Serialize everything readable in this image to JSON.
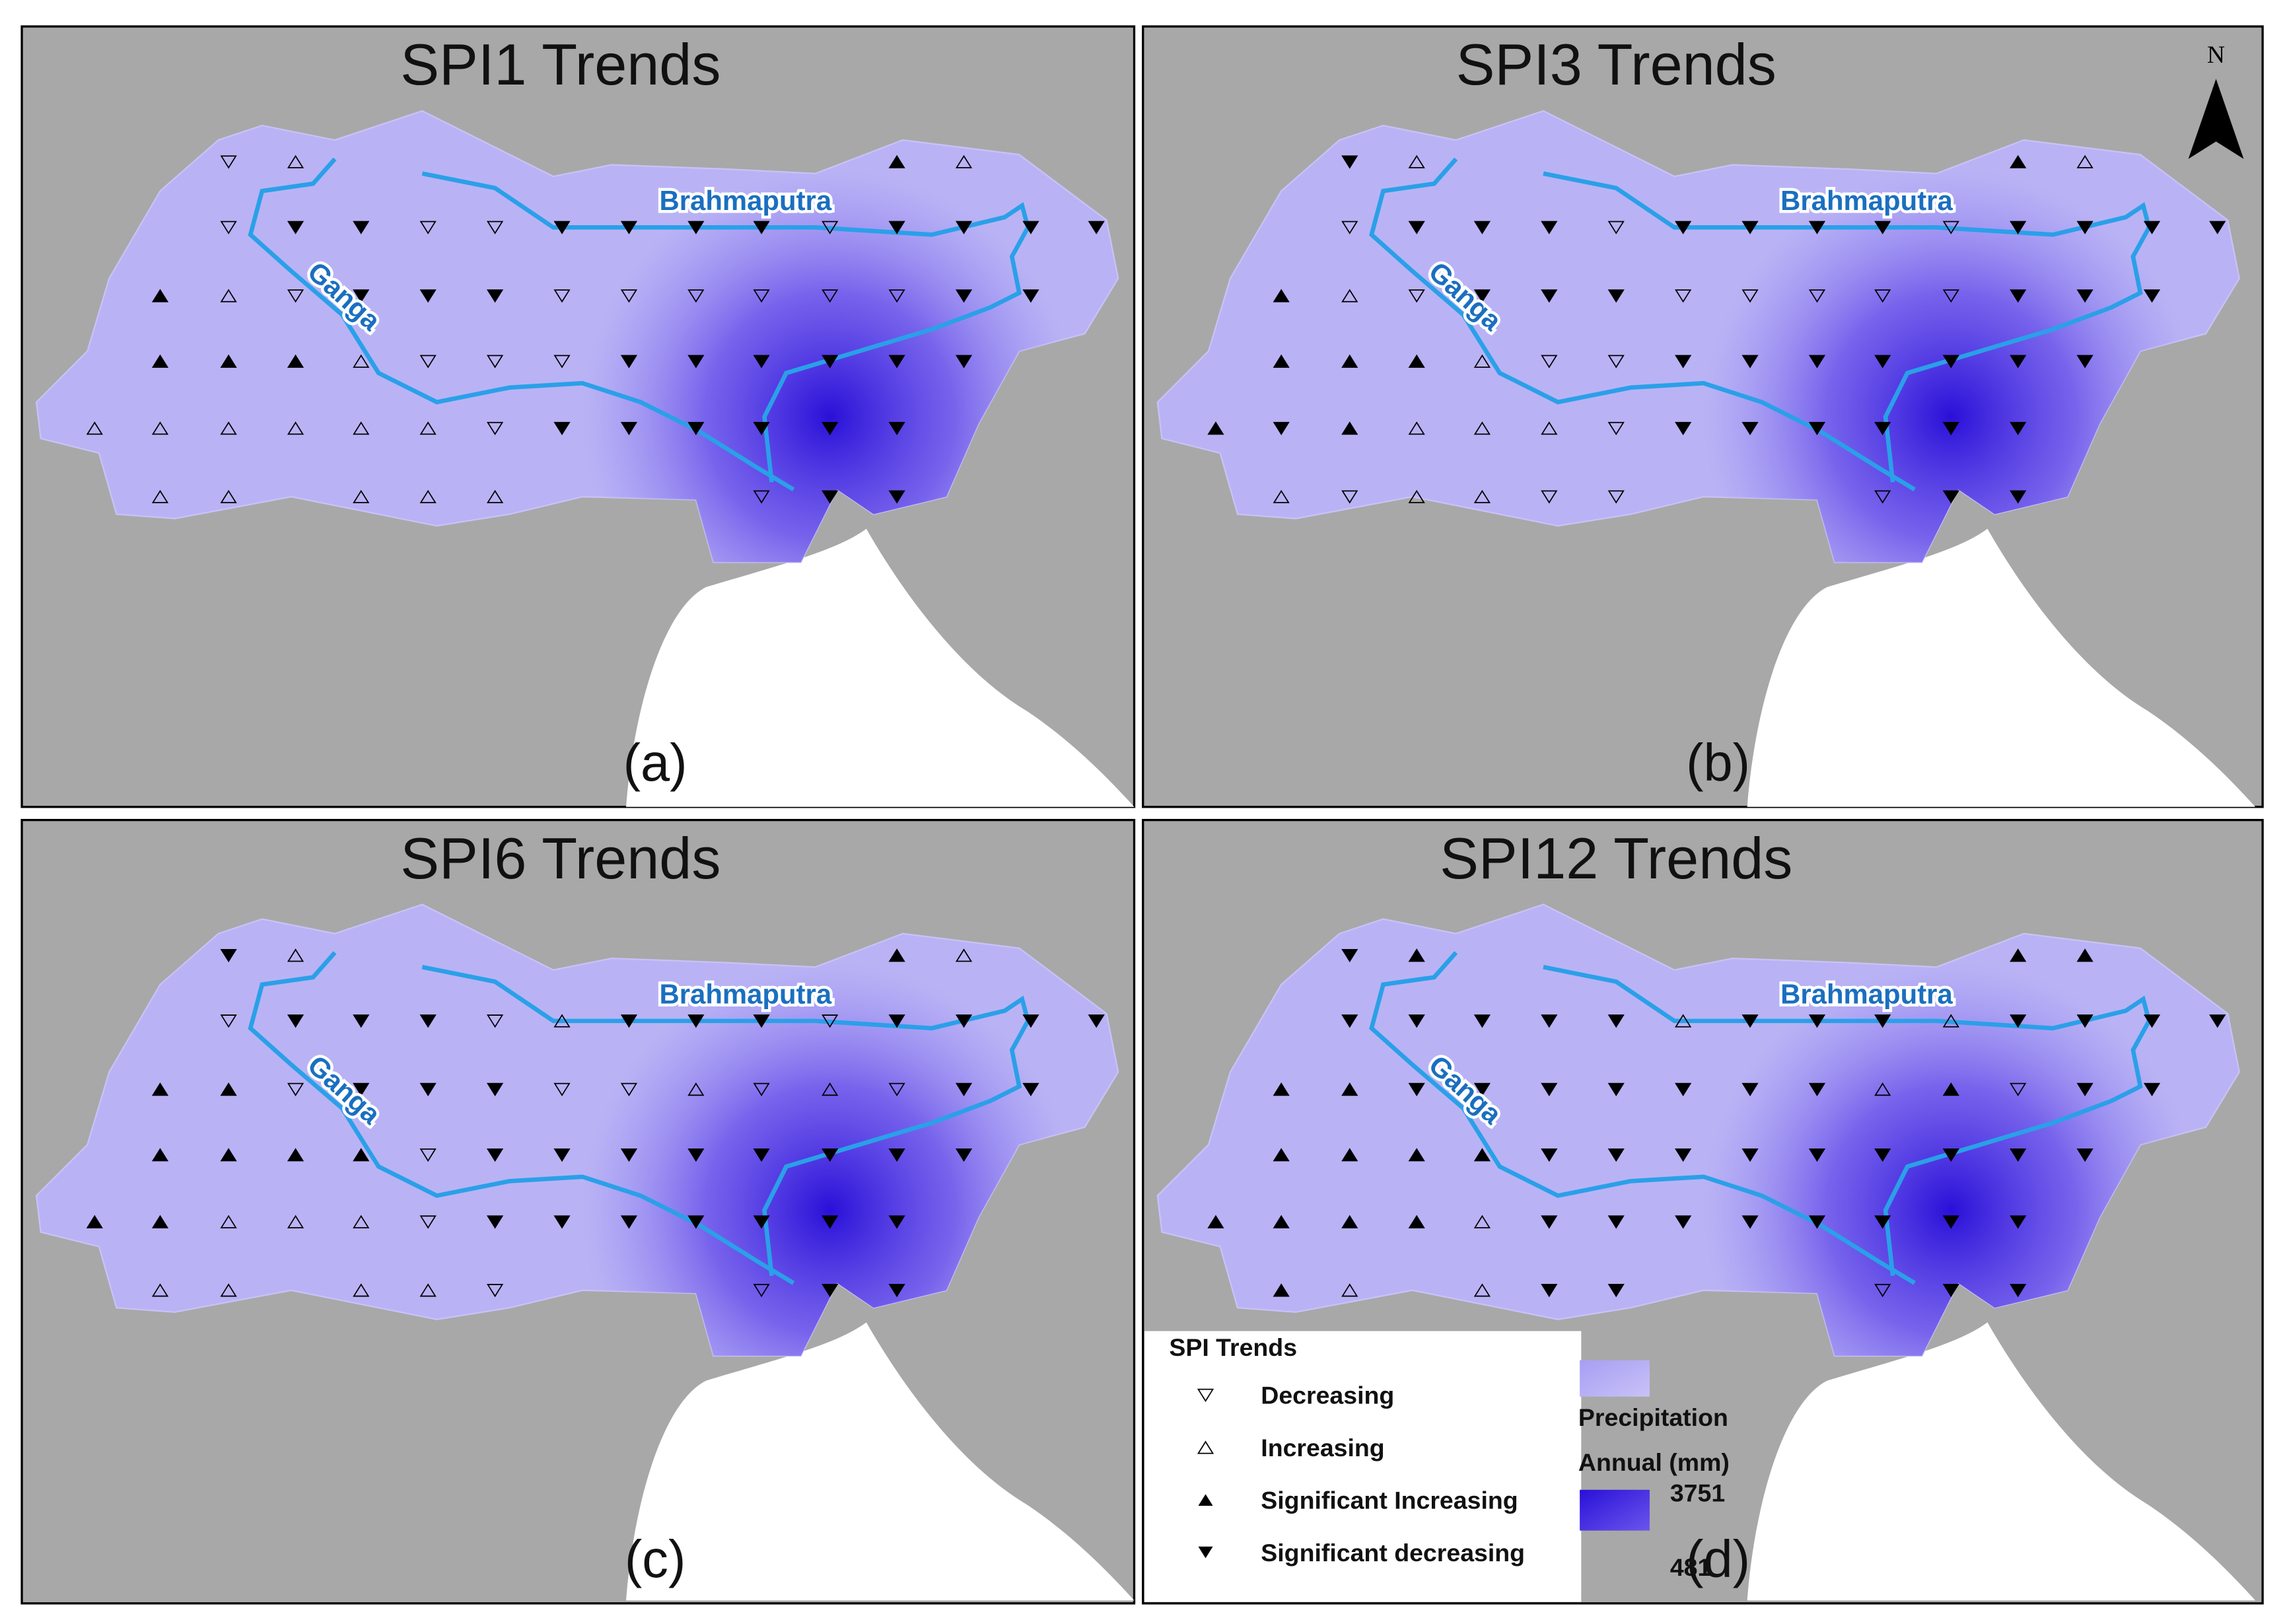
{
  "panels": [
    {
      "title": "SPI1 Trends",
      "label": "(a)"
    },
    {
      "title": "SPI3 Trends",
      "label": "(b)"
    },
    {
      "title": "SPI6 Trends",
      "label": "(c)"
    },
    {
      "title": "SPI12 Trends",
      "label": "(d)"
    }
  ],
  "rivers": {
    "ganga": "Ganga",
    "brahmaputra": "Brahmaputra"
  },
  "north": "N",
  "legend": {
    "title": "SPI Trends",
    "items": [
      "Decreasing",
      "Increasing",
      "Significant Increasing",
      "Significant decreasing"
    ],
    "precip_title": "Precipitation",
    "precip_unit": "Annual (mm)",
    "max": 3751,
    "min": 481
  }
}
